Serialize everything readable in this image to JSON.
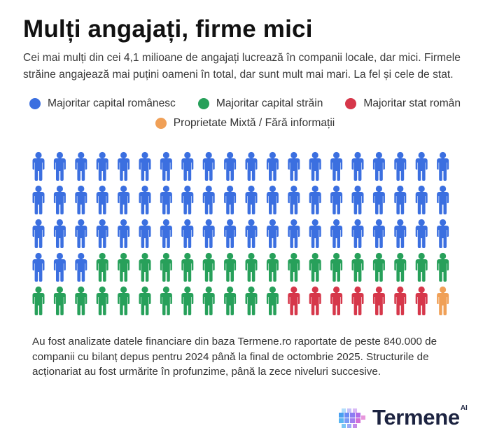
{
  "title": "Mulți angajați, firme mici",
  "subtitle": "Cei mai mulți din cei 4,1 milioane de angajați lucrează în companii locale, dar mici. Firmele străine angajează mai puțini oameni în total, dar sunt mult mai mari. La fel și cele de stat.",
  "note": "Au fost analizate datele financiare din baza Termene.ro raportate de peste 840.000 de companii cu bilanț depus pentru 2024 până la final de octombrie 2025. Structurile de acționariat au fost urmărite în profunzime, până la zece niveluri succesive.",
  "logo": {
    "text": "Termene",
    "ai": "AI"
  },
  "chart_data": {
    "type": "pictogram",
    "columns": 20,
    "rows": 5,
    "series": [
      {
        "name": "Majoritar capital românesc",
        "count": 63,
        "color": "#3b6fe0"
      },
      {
        "name": "Majoritar capital străin",
        "count": 29,
        "color": "#27a05a"
      },
      {
        "name": "Majoritar stat român",
        "count": 7,
        "color": "#d6374a"
      },
      {
        "name": "Proprietate Mixtă / Fără informații",
        "count": 1,
        "color": "#f0a057"
      }
    ],
    "legend_position": "top"
  }
}
